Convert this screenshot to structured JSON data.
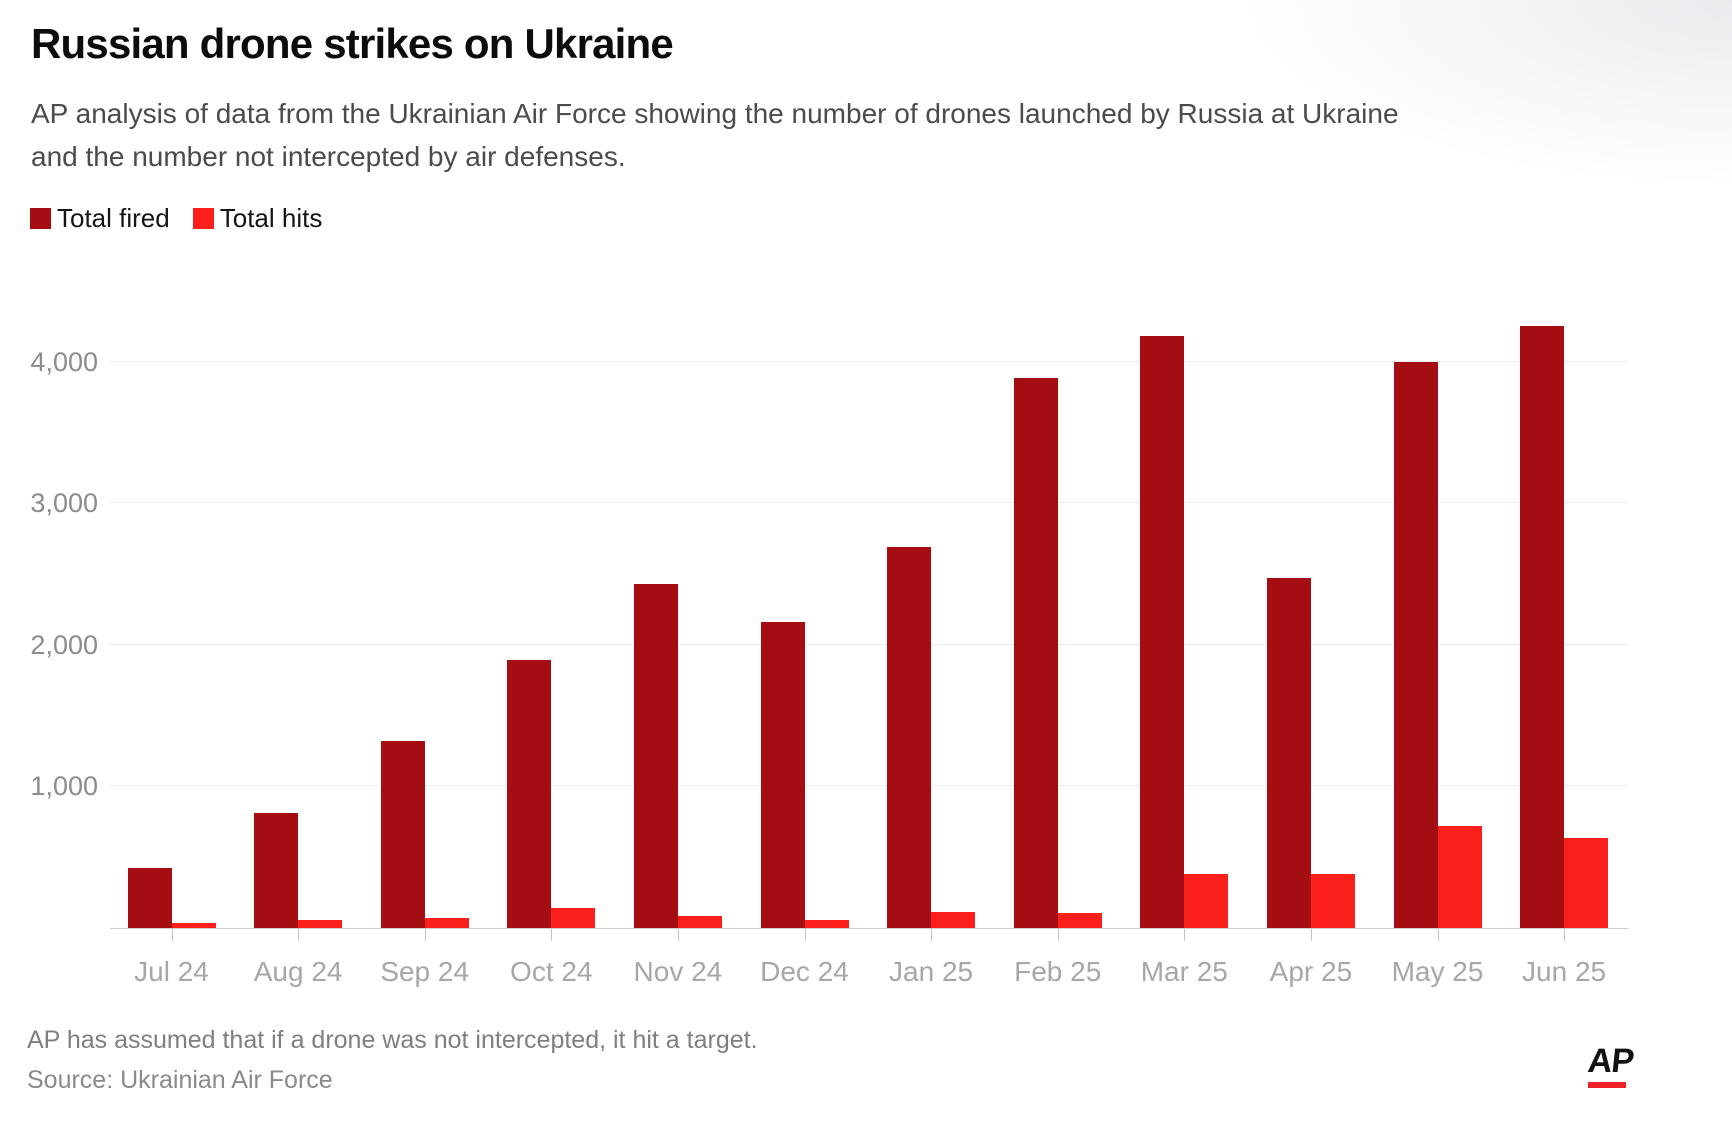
{
  "header": {
    "title": "Russian drone strikes on Ukraine",
    "subtitle_line1": "AP analysis of data from the Ukrainian Air Force showing the number of drones launched by Russia at Ukraine",
    "subtitle_line2": "and the number not intercepted by air defenses."
  },
  "legend": [
    {
      "label": "Total fired",
      "color": "#a40d12"
    },
    {
      "label": "Total hits",
      "color": "#fb1f1c"
    }
  ],
  "chart_data": {
    "type": "bar",
    "title": "Russian drone strikes on Ukraine",
    "categories": [
      "Jul 24",
      "Aug 24",
      "Sep 24",
      "Oct 24",
      "Nov 24",
      "Dec 24",
      "Jan 25",
      "Feb 25",
      "Mar 25",
      "Apr 25",
      "May 25",
      "Jun 25"
    ],
    "series": [
      {
        "name": "Total fired",
        "color": "#a40d12",
        "values": [
          425,
          810,
          1320,
          1890,
          2430,
          2165,
          2695,
          3885,
          4180,
          2470,
          4000,
          4250
        ]
      },
      {
        "name": "Total hits",
        "color": "#fb1f1c",
        "values": [
          35,
          55,
          70,
          140,
          85,
          60,
          110,
          105,
          380,
          380,
          720,
          635
        ]
      }
    ],
    "xlabel": "",
    "ylabel": "",
    "ylim": [
      0,
      4500
    ],
    "yticks": [
      1000,
      2000,
      3000,
      4000
    ],
    "ytick_labels": [
      "1,000",
      "2,000",
      "3,000",
      "4,000"
    ],
    "grid": true,
    "legend_position": "top-left"
  },
  "footer": {
    "note": "AP has assumed that if a drone was not intercepted, it hit a target.",
    "source": "Source: Ukrainian Air Force",
    "logo_text": "AP"
  }
}
